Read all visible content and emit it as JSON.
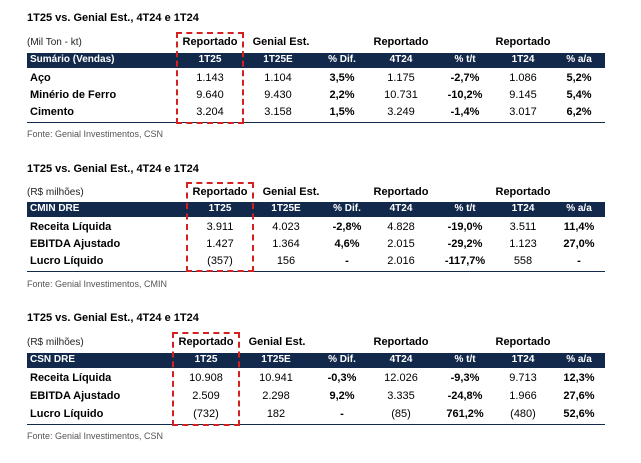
{
  "headers": {
    "reportado": "Reportado",
    "genial": "Genial Est."
  },
  "tables": [
    {
      "title": "1T25 vs. Genial Est., 4T24 e 1T24",
      "units": "(Mil Ton - kt)",
      "label_header": "Sumário (Vendas)",
      "cols": [
        "1T25",
        "1T25E",
        "% Dif.",
        "4T24",
        "% t/t",
        "1T24",
        "% a/a"
      ],
      "rows": [
        {
          "label": "Aço",
          "v": [
            "1.143",
            "1.104",
            "3,5%",
            "1.175",
            "-2,7%",
            "1.086",
            "5,2%"
          ]
        },
        {
          "label": "Minério de Ferro",
          "v": [
            "9.640",
            "9.430",
            "2,2%",
            "10.731",
            "-10,2%",
            "9.145",
            "5,4%"
          ]
        },
        {
          "label": "Cimento",
          "v": [
            "3.204",
            "3.158",
            "1,5%",
            "3.249",
            "-1,4%",
            "3.017",
            "6,2%"
          ]
        }
      ],
      "source": "Fonte: Genial Investimentos, CSN"
    },
    {
      "title": "1T25 vs. Genial Est., 4T24 e 1T24",
      "units": "(R$ milhões)",
      "label_header": "CMIN DRE",
      "cols": [
        "1T25",
        "1T25E",
        "% Dif.",
        "4T24",
        "% t/t",
        "1T24",
        "% a/a"
      ],
      "rows": [
        {
          "label": "Receita Líquida",
          "v": [
            "3.911",
            "4.023",
            "-2,8%",
            "4.828",
            "-19,0%",
            "3.511",
            "11,4%"
          ]
        },
        {
          "label": "EBITDA Ajustado",
          "v": [
            "1.427",
            "1.364",
            "4,6%",
            "2.015",
            "-29,2%",
            "1.123",
            "27,0%"
          ]
        },
        {
          "label": "Lucro Líquido",
          "v": [
            "(357)",
            "156",
            "-",
            "2.016",
            "-117,7%",
            "558",
            "-"
          ]
        }
      ],
      "source": "Fonte: Genial Investimentos, CMIN"
    },
    {
      "title": "1T25 vs. Genial Est., 4T24 e 1T24",
      "units": "(R$ milhões)",
      "label_header": "CSN DRE",
      "cols": [
        "1T25",
        "1T25E",
        "% Dif.",
        "4T24",
        "% t/t",
        "1T24",
        "% a/a"
      ],
      "rows": [
        {
          "label": "Receita Líquida",
          "v": [
            "10.908",
            "10.941",
            "-0,3%",
            "12.026",
            "-9,3%",
            "9.713",
            "12,3%"
          ]
        },
        {
          "label": "EBITDA Ajustado",
          "v": [
            "2.509",
            "2.298",
            "9,2%",
            "3.335",
            "-24,8%",
            "1.966",
            "27,6%"
          ]
        },
        {
          "label": "Lucro Líquido",
          "v": [
            "(732)",
            "182",
            "-",
            "(85)",
            "761,2%",
            "(480)",
            "52,6%"
          ]
        }
      ],
      "source": "Fonte: Genial Investimentos, CSN"
    }
  ]
}
